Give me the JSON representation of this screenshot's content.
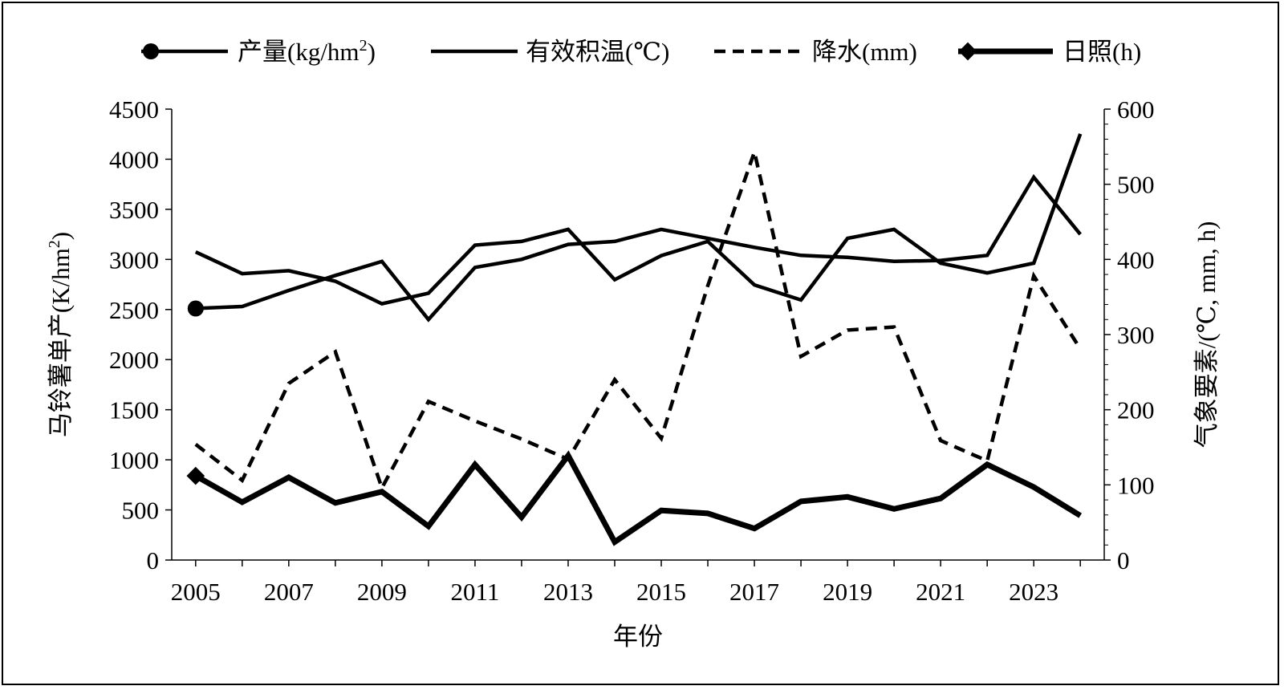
{
  "chart_data": {
    "type": "line",
    "title": "",
    "xlabel": "年份",
    "ylabel_left": "马铃薯单产(K/hm²)",
    "ylabel_left_parts": {
      "base": "马铃薯单产(K/hm",
      "sup": "2",
      "close": ")"
    },
    "ylabel_right": "气象要素/(℃, mm, h)",
    "x": [
      2005,
      2006,
      2007,
      2008,
      2009,
      2010,
      2011,
      2012,
      2013,
      2014,
      2015,
      2016,
      2017,
      2018,
      2019,
      2020,
      2021,
      2022,
      2023,
      2024
    ],
    "x_tick_labels": [
      "2005",
      "2007",
      "2009",
      "2011",
      "2013",
      "2015",
      "2017",
      "2019",
      "2021",
      "2023"
    ],
    "ylim_left": [
      0,
      4500
    ],
    "y_ticks_left": [
      "0",
      "500",
      "1000",
      "1500",
      "2000",
      "2500",
      "3000",
      "3500",
      "4000",
      "4500"
    ],
    "ylim_right": [
      0,
      600
    ],
    "y_ticks_right": [
      "0",
      "100",
      "200",
      "300",
      "400",
      "500",
      "600"
    ],
    "grid": false,
    "legend_position": "top",
    "series": [
      {
        "name": "产量(kg/hm²)",
        "label_base": "产量(kg/hm",
        "label_sup": "2",
        "label_close": ")",
        "axis": "left",
        "style": "solid",
        "marker": "circle",
        "values": [
          2510,
          2530,
          2690,
          2840,
          2980,
          2400,
          2920,
          3000,
          3150,
          3180,
          3300,
          3210,
          3120,
          3040,
          3020,
          2980,
          2990,
          3040,
          3820,
          3250
        ]
      },
      {
        "name": "有效积温(℃)",
        "label_base": "有效积温(℃)",
        "axis": "right",
        "style": "solid-thin",
        "marker": "none",
        "values": [
          410,
          381,
          385,
          371,
          341,
          355,
          419,
          424,
          440,
          373,
          405,
          424,
          366,
          346,
          428,
          440,
          395,
          382,
          395,
          567
        ]
      },
      {
        "name": "降水(mm)",
        "label_base": "降水(mm)",
        "axis": "right",
        "style": "dashed",
        "marker": "none",
        "values": [
          154,
          106,
          235,
          277,
          96,
          211,
          185,
          161,
          134,
          240,
          162,
          365,
          543,
          271,
          306,
          310,
          159,
          132,
          378,
          281
        ]
      },
      {
        "name": "日照(h)",
        "label_base": "日照(h)",
        "axis": "right",
        "style": "solid-thick",
        "marker": "diamond",
        "values": [
          112,
          77,
          110,
          76,
          91,
          45,
          127,
          57,
          139,
          24,
          66,
          62,
          42,
          78,
          84,
          68,
          82,
          127,
          97,
          59
        ]
      }
    ]
  }
}
